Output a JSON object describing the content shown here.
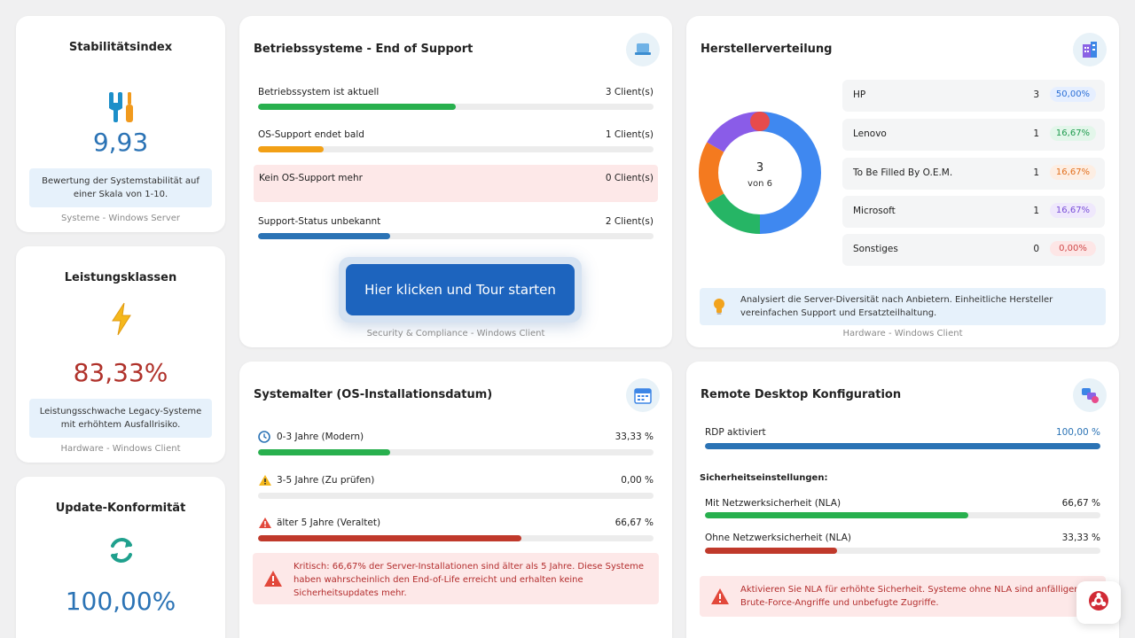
{
  "stability": {
    "title": "Stabilitätsindex",
    "icon": "wrench-screwdriver-icon",
    "value": "9,93",
    "value_color": "#2b73b5",
    "desc": "Bewertung der Systemstabilität auf einer Skala von 1-10.",
    "footer": "Systeme - Windows Server"
  },
  "performance": {
    "title": "Leistungsklassen",
    "icon": "lightning-icon",
    "value": "83,33%",
    "value_color": "#b0322b",
    "desc": "Leistungsschwache Legacy-Systeme mit erhöhtem Ausfallrisiko.",
    "footer": "Hardware - Windows Client"
  },
  "update": {
    "title": "Update-Konformität",
    "icon": "refresh-icon",
    "value": "100,00%",
    "value_color": "#2b73b5"
  },
  "os_support": {
    "title": "Betriebssysteme - End of Support",
    "icon": "laptop-icon",
    "rows": [
      {
        "label": "Betriebssystem ist aktuell",
        "value": "3 Client(s)",
        "fraction": 0.5,
        "color": "#28b04e"
      },
      {
        "label": "OS-Support endet bald",
        "value": "1 Client(s)",
        "fraction": 0.1667,
        "color": "#f2a016"
      },
      {
        "label": "Kein OS-Support mehr",
        "value": "0 Client(s)",
        "fraction": 0,
        "color": "#d04040"
      },
      {
        "label": "Support-Status unbekannt",
        "value": "2 Client(s)",
        "fraction": 0.3333,
        "color": "#2b73b5"
      }
    ],
    "tour_button": "Hier klicken und Tour starten",
    "footer": "Security & Compliance - Windows Client"
  },
  "manufacturers": {
    "title": "Herstellerverteilung",
    "icon": "building-icon",
    "donut_value": "3",
    "donut_sub": "von 6",
    "segments": [
      {
        "name": "HP",
        "fraction": 0.5,
        "color": "#3f88f0"
      },
      {
        "name": "Lenovo",
        "fraction": 0.1667,
        "color": "#26b565"
      },
      {
        "name": "To Be Filled By O.E.M.",
        "fraction": 0.1667,
        "color": "#f47a1f"
      },
      {
        "name": "Microsoft",
        "fraction": 0.1667,
        "color": "#8a5ce8"
      }
    ],
    "marker_color": "#e74b4b",
    "rows": [
      {
        "name": "HP",
        "count": "3",
        "pct": "50,00%",
        "pct_color": "#2b6fd6",
        "pct_bg": "#e6efff"
      },
      {
        "name": "Lenovo",
        "count": "1",
        "pct": "16,67%",
        "pct_color": "#1f9b4e",
        "pct_bg": "#e3f6ea"
      },
      {
        "name": "To Be Filled By O.E.M.",
        "count": "1",
        "pct": "16,67%",
        "pct_color": "#e2701e",
        "pct_bg": "#fdeee3"
      },
      {
        "name": "Microsoft",
        "count": "1",
        "pct": "16,67%",
        "pct_color": "#7a4fd8",
        "pct_bg": "#efe8fc"
      },
      {
        "name": "Sonstiges",
        "count": "0",
        "pct": "0,00%",
        "pct_color": "#d04848",
        "pct_bg": "#fde6e6"
      }
    ],
    "info": "Analysiert die Server-Diversität nach Anbietern. Einheitliche Hersteller vereinfachen Support und Ersatzteilhaltung.",
    "info_icon": "lightbulb-icon",
    "footer": "Hardware - Windows Client"
  },
  "system_age": {
    "title": "Systemalter (OS-Installationsdatum)",
    "icon": "calendar-icon",
    "rows": [
      {
        "icon": "clock-icon",
        "label": "0-3 Jahre (Modern)",
        "value": "33,33 %",
        "fraction": 0.3333,
        "color": "#28b04e"
      },
      {
        "icon": "warning-icon",
        "label": "3-5 Jahre (Zu prüfen)",
        "value": "0,00 %",
        "fraction": 0,
        "color": "#f2a016"
      },
      {
        "icon": "alert-icon",
        "label": "älter 5 Jahre (Veraltet)",
        "value": "66,67 %",
        "fraction": 0.6667,
        "color": "#c0392b"
      }
    ],
    "alert": "Kritisch: 66,67% der Server-Installationen sind älter als 5 Jahre. Diese Systeme haben wahrscheinlich den End-of-Life erreicht und erhalten keine Sicherheitsupdates mehr."
  },
  "rdp": {
    "title": "Remote Desktop Konfiguration",
    "icon": "remote-desktop-icon",
    "enabled_label": "RDP aktiviert",
    "enabled_value": "100,00 %",
    "enabled_fraction": 1,
    "section_label": "Sicherheitseinstellungen:",
    "rows": [
      {
        "label": "Mit Netzwerksicherheit (NLA)",
        "value": "66,67 %",
        "fraction": 0.6667,
        "color": "#28b04e"
      },
      {
        "label": "Ohne Netzwerksicherheit (NLA)",
        "value": "33,33 %",
        "fraction": 0.3333,
        "color": "#c0392b"
      }
    ],
    "alert": "Aktivieren Sie NLA für erhöhte Sicherheit. Systeme ohne NLA sind anfälliger für Brute-Force-Angriffe und unbefugte Zugriffe."
  },
  "support_fab": {
    "icon": "lifebuoy-icon"
  }
}
